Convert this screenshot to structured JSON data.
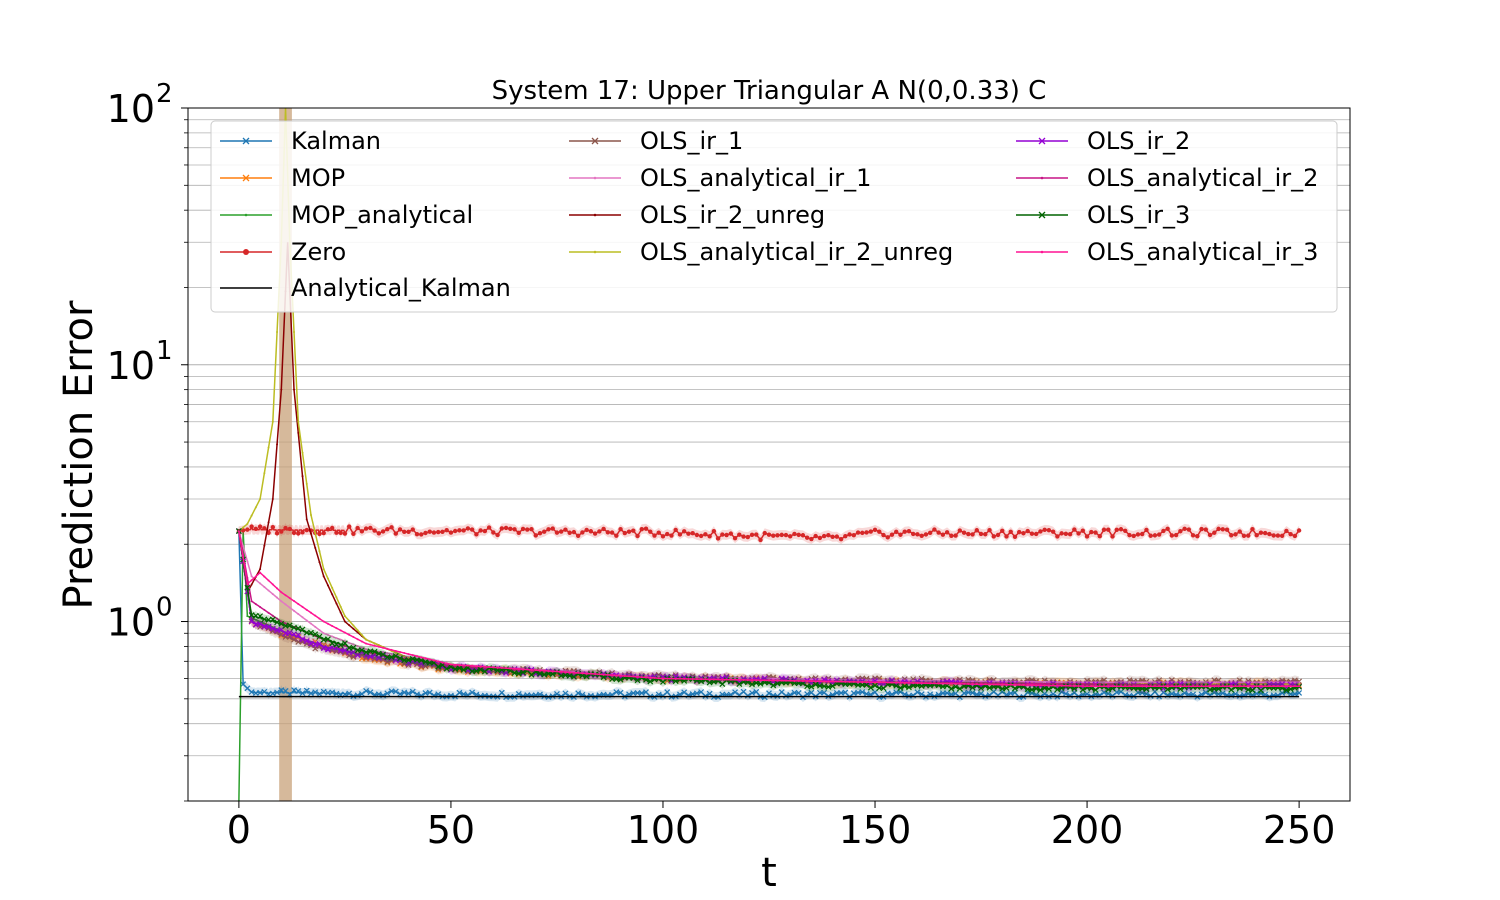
{
  "chart_data": {
    "type": "line",
    "title": "System 17: Upper Triangular A N(0,0.33) C",
    "xlabel": "t",
    "ylabel": "Prediction Error",
    "xlim": [
      -12,
      262
    ],
    "ylim": [
      0.2,
      100
    ],
    "yscale": "log",
    "grid": "y-major-and-minor",
    "legend_placement": "top",
    "x_ticks": [
      0,
      50,
      100,
      150,
      200,
      250
    ],
    "x_tick_labels": [
      "0",
      "50",
      "100",
      "150",
      "200",
      "250"
    ],
    "y_ticks": [
      1,
      10,
      100
    ],
    "y_tick_labels": [
      "10",
      "10",
      "10"
    ],
    "y_tick_exponents": [
      "0",
      "1",
      "2"
    ],
    "vertical_band": {
      "x": [
        9.5,
        12.5
      ],
      "color": "#c8a27a"
    },
    "series": [
      {
        "name": "Kalman",
        "color": "#1f77b4",
        "marker": "x",
        "start": 2.25,
        "drop_at": 1,
        "points": [
          [
            1,
            0.57
          ],
          [
            3,
            0.53
          ],
          [
            50,
            0.52
          ],
          [
            100,
            0.52
          ],
          [
            150,
            0.52
          ],
          [
            200,
            0.52
          ],
          [
            250,
            0.52
          ]
        ],
        "noise": 0.025,
        "band": true
      },
      {
        "name": "MOP",
        "color": "#ff7f0e",
        "marker": "x",
        "start": 2.25,
        "points": [
          [
            3,
            1.0
          ],
          [
            10,
            0.9
          ],
          [
            20,
            0.8
          ],
          [
            30,
            0.72
          ],
          [
            50,
            0.65
          ],
          [
            100,
            0.6
          ],
          [
            150,
            0.58
          ],
          [
            200,
            0.57
          ],
          [
            250,
            0.57
          ]
        ],
        "noise": 0.02,
        "band": true
      },
      {
        "name": "MOP_analytical",
        "color": "#2ca02c",
        "marker": "dot",
        "start": 0.2,
        "points": [
          [
            1,
            2.25
          ],
          [
            2,
            1.05
          ],
          [
            10,
            0.92
          ],
          [
            20,
            0.8
          ],
          [
            30,
            0.73
          ],
          [
            50,
            0.66
          ],
          [
            100,
            0.6
          ],
          [
            150,
            0.58
          ],
          [
            200,
            0.57
          ],
          [
            250,
            0.57
          ]
        ],
        "noise": 0.0,
        "band": false
      },
      {
        "name": "Zero",
        "color": "#d62728",
        "marker": "o",
        "start": 2.25,
        "points": [
          [
            2,
            2.28
          ],
          [
            50,
            2.25
          ],
          [
            100,
            2.22
          ],
          [
            140,
            2.1
          ],
          [
            150,
            2.2
          ],
          [
            200,
            2.22
          ],
          [
            250,
            2.22
          ]
        ],
        "noise": 0.035,
        "band": true
      },
      {
        "name": "Analytical_Kalman",
        "color": "#000000",
        "marker": "none",
        "start": 0.51,
        "points": [
          [
            250,
            0.51
          ]
        ],
        "noise": 0.0,
        "band": false
      },
      {
        "name": "OLS_ir_1",
        "color": "#8c564b",
        "marker": "x",
        "start": 2.25,
        "points": [
          [
            3,
            1.0
          ],
          [
            10,
            0.88
          ],
          [
            20,
            0.78
          ],
          [
            30,
            0.72
          ],
          [
            50,
            0.66
          ],
          [
            100,
            0.61
          ],
          [
            150,
            0.59
          ],
          [
            200,
            0.58
          ],
          [
            250,
            0.58
          ]
        ],
        "noise": 0.02,
        "band": true
      },
      {
        "name": "OLS_analytical_ir_1",
        "color": "#e377c2",
        "marker": "dot",
        "start": 2.25,
        "points": [
          [
            3,
            1.5
          ],
          [
            10,
            1.2
          ],
          [
            20,
            0.9
          ],
          [
            30,
            0.78
          ],
          [
            50,
            0.68
          ],
          [
            100,
            0.61
          ],
          [
            150,
            0.59
          ],
          [
            200,
            0.58
          ],
          [
            250,
            0.58
          ]
        ],
        "noise": 0.0,
        "band": false
      },
      {
        "name": "OLS_ir_2_unreg",
        "color": "#8b0000",
        "marker": "dot",
        "start": 2.25,
        "points": [
          [
            2,
            1.3
          ],
          [
            5,
            1.6
          ],
          [
            8,
            3.0
          ],
          [
            10,
            8.0
          ],
          [
            11.5,
            30.0
          ],
          [
            13,
            8.0
          ],
          [
            16,
            2.5
          ],
          [
            20,
            1.5
          ],
          [
            25,
            1.0
          ],
          [
            30,
            0.85
          ],
          [
            40,
            0.72
          ],
          [
            50,
            0.66
          ],
          [
            100,
            0.6
          ],
          [
            150,
            0.58
          ],
          [
            200,
            0.57
          ],
          [
            250,
            0.57
          ]
        ],
        "noise": 0.0,
        "band": false
      },
      {
        "name": "OLS_analytical_ir_2_unreg",
        "color": "#bcbd22",
        "marker": "dot",
        "start": 2.25,
        "points": [
          [
            2,
            2.4
          ],
          [
            5,
            3.0
          ],
          [
            8,
            6.0
          ],
          [
            10,
            30.0
          ],
          [
            11,
            100.0
          ],
          [
            12,
            30.0
          ],
          [
            14,
            6.0
          ],
          [
            17,
            2.6
          ],
          [
            20,
            1.6
          ],
          [
            25,
            1.05
          ],
          [
            30,
            0.85
          ],
          [
            40,
            0.72
          ],
          [
            50,
            0.66
          ],
          [
            100,
            0.6
          ],
          [
            150,
            0.58
          ],
          [
            200,
            0.57
          ],
          [
            250,
            0.57
          ]
        ],
        "noise": 0.0,
        "band": false
      },
      {
        "name": "OLS_ir_2",
        "color": "#9400d3",
        "marker": "x",
        "start": 2.25,
        "points": [
          [
            3,
            1.0
          ],
          [
            10,
            0.92
          ],
          [
            20,
            0.8
          ],
          [
            30,
            0.74
          ],
          [
            50,
            0.66
          ],
          [
            100,
            0.6
          ],
          [
            150,
            0.58
          ],
          [
            200,
            0.56
          ],
          [
            250,
            0.56
          ]
        ],
        "noise": 0.02,
        "band": true
      },
      {
        "name": "OLS_analytical_ir_2",
        "color": "#c71585",
        "marker": "dot",
        "start": 2.25,
        "points": [
          [
            3,
            1.2
          ],
          [
            10,
            1.0
          ],
          [
            20,
            0.85
          ],
          [
            30,
            0.76
          ],
          [
            50,
            0.67
          ],
          [
            100,
            0.6
          ],
          [
            150,
            0.58
          ],
          [
            200,
            0.57
          ],
          [
            250,
            0.56
          ]
        ],
        "noise": 0.0,
        "band": false
      },
      {
        "name": "OLS_ir_3",
        "color": "#006400",
        "marker": "x",
        "start": 2.25,
        "points": [
          [
            3,
            1.05
          ],
          [
            10,
            0.98
          ],
          [
            20,
            0.86
          ],
          [
            30,
            0.76
          ],
          [
            50,
            0.66
          ],
          [
            100,
            0.59
          ],
          [
            150,
            0.56
          ],
          [
            200,
            0.55
          ],
          [
            250,
            0.55
          ]
        ],
        "noise": 0.02,
        "band": true
      },
      {
        "name": "OLS_analytical_ir_3",
        "color": "#ff1493",
        "marker": "dot",
        "start": 2.25,
        "points": [
          [
            2,
            1.4
          ],
          [
            5,
            1.55
          ],
          [
            10,
            1.3
          ],
          [
            20,
            1.0
          ],
          [
            30,
            0.82
          ],
          [
            50,
            0.68
          ],
          [
            100,
            0.6
          ],
          [
            150,
            0.58
          ],
          [
            200,
            0.56
          ],
          [
            250,
            0.56
          ]
        ],
        "noise": 0.0,
        "band": false
      }
    ]
  }
}
